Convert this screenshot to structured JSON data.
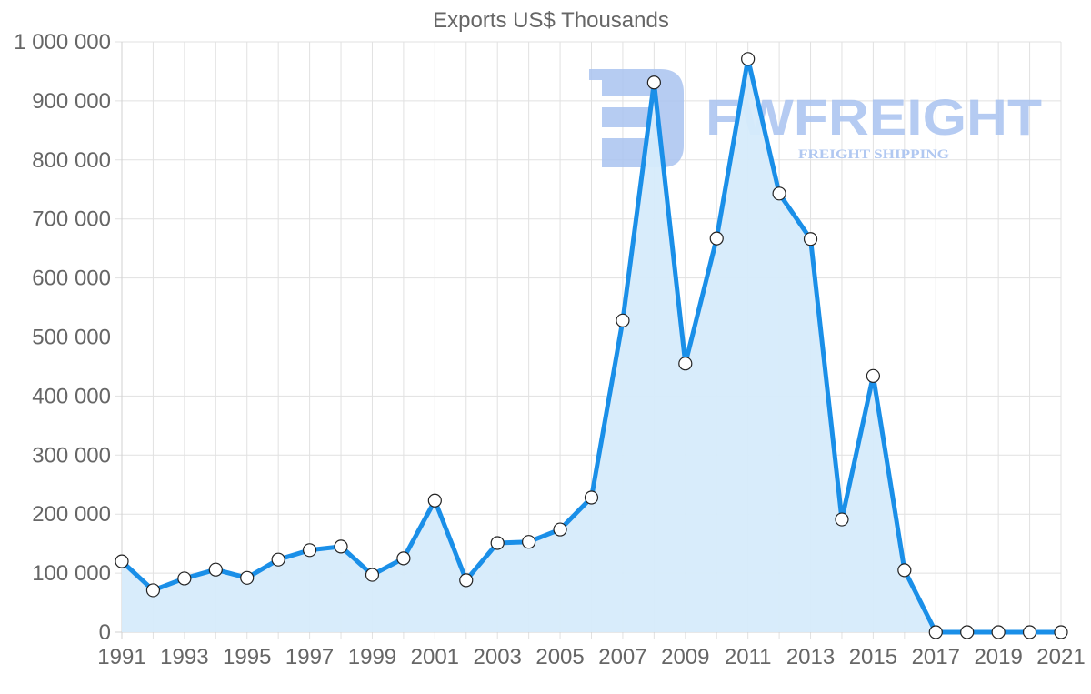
{
  "chart_data": {
    "type": "line",
    "title": "Exports US$ Thousands",
    "xlabel": "",
    "ylabel": "",
    "x": [
      1991,
      1992,
      1993,
      1994,
      1995,
      1996,
      1997,
      1998,
      1999,
      2000,
      2001,
      2002,
      2003,
      2004,
      2005,
      2006,
      2007,
      2008,
      2009,
      2010,
      2011,
      2012,
      2013,
      2014,
      2015,
      2016,
      2017,
      2018,
      2019,
      2020,
      2021
    ],
    "series": [
      {
        "name": "Exports US$ Thousands",
        "values": [
          120000,
          71000,
          91000,
          106000,
          92000,
          123000,
          139000,
          145000,
          97000,
          125000,
          223000,
          88000,
          151000,
          153000,
          174000,
          228000,
          528000,
          931000,
          455000,
          667000,
          971000,
          743000,
          666000,
          191000,
          434000,
          105000,
          0,
          0,
          0,
          0,
          0
        ],
        "color": "#1a8fe8",
        "fill": "#d6ebfb"
      }
    ],
    "ylim": [
      0,
      1000000
    ],
    "yticks": [
      "0",
      "100 000",
      "200 000",
      "300 000",
      "400 000",
      "500 000",
      "600 000",
      "700 000",
      "800 000",
      "900 000",
      "1 000 000"
    ],
    "xticks": [
      "1991",
      "1993",
      "1995",
      "1997",
      "1999",
      "2001",
      "2003",
      "2005",
      "2007",
      "2009",
      "2011",
      "2013",
      "2015",
      "2017",
      "2019",
      "2021"
    ],
    "grid": true,
    "legend": "none"
  },
  "watermark": {
    "brand": "FWFREIGHT",
    "tagline": "FREIGHT SHIPPING",
    "color": "#a9c3f0"
  }
}
